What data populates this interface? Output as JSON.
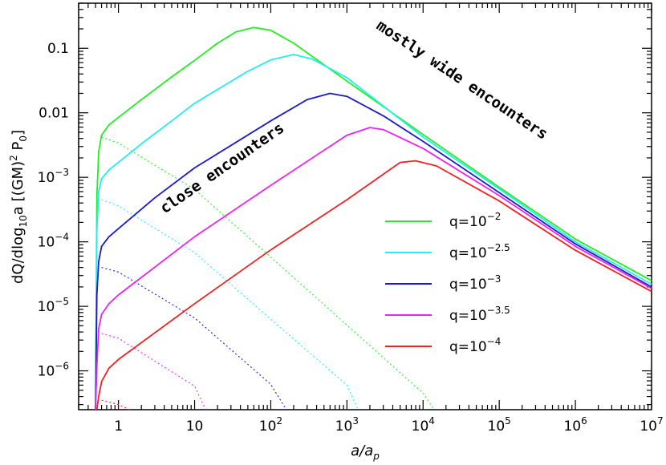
{
  "chart_data": {
    "type": "line",
    "title": "",
    "xlabel": "a/a_p",
    "xlabel_main": "a/a",
    "xlabel_sub": "p",
    "ylabel": "dQ/dlog10a [(GM)² P0]",
    "ylabel_parts": {
      "main": "dQ/dlog",
      "sub1": "10",
      "mid": "a [(GM)",
      "sup": "2",
      "mid2": " P",
      "sub2": "0",
      "end": "]"
    },
    "x_scale": "log",
    "y_scale": "log",
    "xlim": [
      0.3,
      10000000
    ],
    "ylim": [
      2.5e-07,
      0.5
    ],
    "x_ticks": [
      {
        "value": 1,
        "base": "1",
        "exp": ""
      },
      {
        "value": 10,
        "base": "10",
        "exp": ""
      },
      {
        "value": 100,
        "base": "10",
        "exp": "2"
      },
      {
        "value": 1000,
        "base": "10",
        "exp": "3"
      },
      {
        "value": 10000,
        "base": "10",
        "exp": "4"
      },
      {
        "value": 100000,
        "base": "10",
        "exp": "5"
      },
      {
        "value": 1000000,
        "base": "10",
        "exp": "6"
      },
      {
        "value": 10000000,
        "base": "10",
        "exp": "7"
      }
    ],
    "y_ticks": [
      {
        "value": 0.1,
        "base": "0.1",
        "exp": ""
      },
      {
        "value": 0.01,
        "base": "0.01",
        "exp": ""
      },
      {
        "value": 0.001,
        "base": "10",
        "exp": "−3"
      },
      {
        "value": 0.0001,
        "base": "10",
        "exp": "−4"
      },
      {
        "value": 1e-05,
        "base": "10",
        "exp": "−5"
      },
      {
        "value": 1e-06,
        "base": "10",
        "exp": "−6"
      }
    ],
    "grid": false,
    "legend_position": "center-right",
    "series": [
      {
        "name": "q=10−2",
        "label_base": "q=10",
        "label_exp": "−2",
        "color": "#22ee22",
        "solid": [
          [
            0.5,
            2.5e-07
          ],
          [
            0.52,
            0.0005
          ],
          [
            0.55,
            0.0025
          ],
          [
            0.6,
            0.0045
          ],
          [
            0.75,
            0.0065
          ],
          [
            1,
            0.0085
          ],
          [
            2,
            0.016
          ],
          [
            5,
            0.036
          ],
          [
            10,
            0.065
          ],
          [
            20,
            0.12
          ],
          [
            35,
            0.18
          ],
          [
            60,
            0.21
          ],
          [
            100,
            0.19
          ],
          [
            200,
            0.12
          ],
          [
            1000,
            0.031
          ],
          [
            10000,
            0.0046
          ],
          [
            100000,
            0.0007
          ],
          [
            1000000,
            0.00011
          ],
          [
            10000000,
            2.5e-05
          ]
        ],
        "dotted": [
          [
            0.6,
            0.0042
          ],
          [
            1,
            0.0034
          ],
          [
            10,
            0.00065
          ],
          [
            100,
            5.8e-05
          ],
          [
            1000,
            5.1e-06
          ],
          [
            10000,
            4.5e-07
          ],
          [
            14000,
            2.5e-07
          ]
        ]
      },
      {
        "name": "q=10−2.5",
        "label_base": "q=10",
        "label_exp": "−2.5",
        "color": "#22eeee",
        "solid": [
          [
            0.5,
            2.5e-07
          ],
          [
            0.52,
            0.00015
          ],
          [
            0.55,
            0.0006
          ],
          [
            0.6,
            0.00095
          ],
          [
            0.75,
            0.0013
          ],
          [
            1,
            0.0017
          ],
          [
            2,
            0.0033
          ],
          [
            5,
            0.0075
          ],
          [
            10,
            0.014
          ],
          [
            50,
            0.044
          ],
          [
            100,
            0.066
          ],
          [
            200,
            0.08
          ],
          [
            350,
            0.068
          ],
          [
            1000,
            0.035
          ],
          [
            10000,
            0.0042
          ],
          [
            100000,
            0.00066
          ],
          [
            1000000,
            0.0001
          ],
          [
            10000000,
            2.2e-05
          ]
        ],
        "dotted": [
          [
            0.6,
            0.00045
          ],
          [
            1,
            0.00036
          ],
          [
            10,
            6.8e-05
          ],
          [
            100,
            6.3e-06
          ],
          [
            1000,
            6e-07
          ],
          [
            1400,
            2.5e-07
          ]
        ]
      },
      {
        "name": "q=10−3",
        "label_base": "q=10",
        "label_exp": "−3",
        "color": "#1a1acc",
        "solid": [
          [
            0.5,
            2.5e-07
          ],
          [
            0.52,
            1.5e-05
          ],
          [
            0.55,
            5e-05
          ],
          [
            0.6,
            8.5e-05
          ],
          [
            0.75,
            0.00012
          ],
          [
            1,
            0.00016
          ],
          [
            3,
            0.00048
          ],
          [
            10,
            0.0014
          ],
          [
            100,
            0.0075
          ],
          [
            300,
            0.016
          ],
          [
            600,
            0.02
          ],
          [
            1000,
            0.018
          ],
          [
            3000,
            0.009
          ],
          [
            10000,
            0.0036
          ],
          [
            100000,
            0.00058
          ],
          [
            1000000,
            9.3e-05
          ],
          [
            10000000,
            2e-05
          ]
        ],
        "dotted": [
          [
            0.6,
            4e-05
          ],
          [
            1,
            3.4e-05
          ],
          [
            10,
            6.6e-06
          ],
          [
            100,
            6.2e-07
          ],
          [
            160,
            2.5e-07
          ]
        ]
      },
      {
        "name": "q=10−3.5",
        "label_base": "q=10",
        "label_exp": "−3.5",
        "color": "#ee22ee",
        "solid": [
          [
            0.5,
            2.5e-07
          ],
          [
            0.52,
            1.2e-06
          ],
          [
            0.55,
            4.5e-06
          ],
          [
            0.6,
            7.5e-06
          ],
          [
            0.75,
            1.1e-05
          ],
          [
            1,
            1.5e-05
          ],
          [
            10,
            0.00012
          ],
          [
            100,
            0.00075
          ],
          [
            1000,
            0.0045
          ],
          [
            2000,
            0.0059
          ],
          [
            3000,
            0.0055
          ],
          [
            10000,
            0.0028
          ],
          [
            100000,
            0.00052
          ],
          [
            1000000,
            8.5e-05
          ],
          [
            10000000,
            1.9e-05
          ]
        ],
        "dotted": [
          [
            0.6,
            3.8e-06
          ],
          [
            1,
            3.2e-06
          ],
          [
            10,
            5.8e-07
          ],
          [
            14,
            2.5e-07
          ]
        ]
      },
      {
        "name": "q=10−4",
        "label_base": "q=10",
        "label_exp": "−4",
        "color": "#ee2222",
        "solid": [
          [
            0.52,
            2.5e-07
          ],
          [
            0.55,
            4e-07
          ],
          [
            0.6,
            6.8e-07
          ],
          [
            0.75,
            1.1e-06
          ],
          [
            1,
            1.5e-06
          ],
          [
            10,
            1.1e-05
          ],
          [
            100,
            7.5e-05
          ],
          [
            1000,
            0.00045
          ],
          [
            5000,
            0.0017
          ],
          [
            8000,
            0.0018
          ],
          [
            15000,
            0.0015
          ],
          [
            100000,
            0.00043
          ],
          [
            1000000,
            7.4e-05
          ],
          [
            10000000,
            1.7e-05
          ]
        ],
        "dotted": [
          [
            0.6,
            3.5e-07
          ],
          [
            1,
            3e-07
          ],
          [
            1.4,
            2.5e-07
          ]
        ]
      }
    ],
    "annotations": [
      {
        "text": "close encounters",
        "x": 25,
        "y": 0.0012,
        "angle_data": [
          [
            5.2,
            0.0004
          ],
          [
            100,
            0.0045
          ]
        ]
      },
      {
        "text": "mostly wide encounters",
        "x": 30000,
        "y": 0.028,
        "angle_data": [
          [
            5000,
            0.1
          ],
          [
            2000000,
            0.0009
          ]
        ]
      }
    ]
  }
}
